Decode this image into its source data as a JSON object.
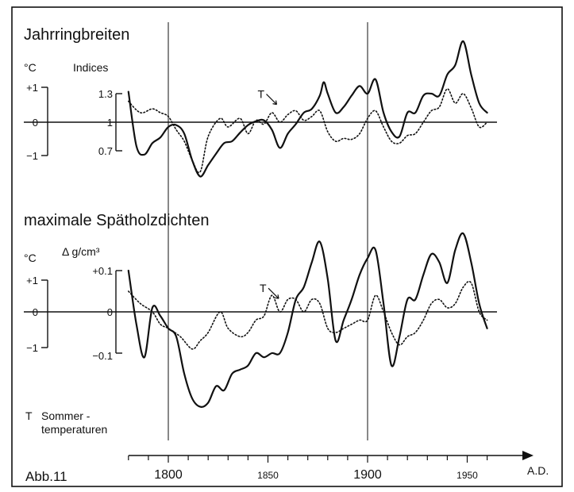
{
  "figure_label": "Abb.11",
  "legend_note": {
    "marker": "T",
    "line1": "Sommer -",
    "line2": "temperaturen"
  },
  "time_axis": {
    "label": "A.D.",
    "ticks": [
      1800,
      1850,
      1900,
      1950
    ],
    "range": [
      1780,
      1970
    ]
  },
  "chart_data": [
    {
      "type": "line",
      "title": "Jahrringbreiten",
      "temp_axis": {
        "unit": "°C",
        "ticks": [
          "+1",
          "0",
          "−1"
        ],
        "range": [
          -1,
          1
        ]
      },
      "index_axis": {
        "unit": "Indices",
        "ticks": [
          "1.3",
          "1",
          "0.7"
        ],
        "range": [
          0.7,
          1.3
        ]
      },
      "series": [
        {
          "style": "solid",
          "x": [
            1780,
            1784,
            1788,
            1792,
            1796,
            1800,
            1804,
            1808,
            1812,
            1816,
            1820,
            1824,
            1828,
            1832,
            1836,
            1840,
            1844,
            1848,
            1852,
            1856,
            1860,
            1864,
            1868,
            1872,
            1876,
            1878,
            1880,
            1884,
            1888,
            1892,
            1896,
            1900,
            1904,
            1908,
            1912,
            1916,
            1920,
            1924,
            1928,
            1932,
            1936,
            1940,
            1944,
            1948,
            1952,
            1956,
            1960
          ],
          "y": [
            1.32,
            0.75,
            0.66,
            0.78,
            0.84,
            0.95,
            0.97,
            0.88,
            0.6,
            0.43,
            0.55,
            0.67,
            0.78,
            0.8,
            0.89,
            0.97,
            1.01,
            1.02,
            0.92,
            0.73,
            0.88,
            0.98,
            1.1,
            1.14,
            1.28,
            1.42,
            1.3,
            1.1,
            1.16,
            1.28,
            1.38,
            1.3,
            1.45,
            1.1,
            0.9,
            0.85,
            1.1,
            1.1,
            1.28,
            1.3,
            1.28,
            1.5,
            1.6,
            1.85,
            1.5,
            1.2,
            1.1
          ]
        },
        {
          "style": "dotted",
          "x": [
            1780,
            1786,
            1792,
            1796,
            1800,
            1804,
            1808,
            1812,
            1816,
            1820,
            1826,
            1830,
            1836,
            1840,
            1844,
            1848,
            1852,
            1856,
            1860,
            1864,
            1868,
            1872,
            1876,
            1880,
            1884,
            1888,
            1892,
            1896,
            1900,
            1904,
            1908,
            1912,
            1916,
            1920,
            1924,
            1928,
            1932,
            1936,
            1940,
            1944,
            1948,
            1952,
            1956,
            1960
          ],
          "y": [
            1.22,
            1.1,
            1.14,
            1.1,
            1.06,
            0.92,
            0.8,
            0.6,
            0.48,
            0.85,
            1.04,
            0.95,
            1.04,
            0.88,
            1.02,
            0.98,
            1.1,
            1.0,
            1.08,
            1.12,
            1.02,
            1.06,
            1.12,
            0.9,
            0.8,
            0.83,
            0.82,
            0.88,
            1.04,
            1.12,
            0.95,
            0.8,
            0.78,
            0.86,
            0.88,
            1.0,
            1.12,
            1.16,
            1.35,
            1.2,
            1.3,
            1.15,
            0.95,
            1.0
          ]
        }
      ],
      "annotation": {
        "text": "T",
        "x": 1852,
        "y": 1.22
      }
    },
    {
      "type": "line",
      "title": "maximale Spätholzdichten",
      "temp_axis": {
        "unit": "°C",
        "ticks": [
          "+1",
          "0",
          "−1"
        ],
        "range": [
          -1,
          1
        ]
      },
      "density_axis": {
        "unit": "Δ g/cm³",
        "ticks": [
          "+0.1",
          "0",
          "−0.1"
        ],
        "range": [
          -0.1,
          0.1
        ]
      },
      "series": [
        {
          "style": "solid",
          "x": [
            1780,
            1784,
            1788,
            1792,
            1796,
            1800,
            1804,
            1808,
            1812,
            1816,
            1820,
            1824,
            1828,
            1832,
            1836,
            1840,
            1844,
            1848,
            1852,
            1856,
            1860,
            1864,
            1868,
            1872,
            1876,
            1880,
            1884,
            1888,
            1892,
            1896,
            1900,
            1904,
            1908,
            1912,
            1916,
            1920,
            1924,
            1928,
            1932,
            1936,
            1940,
            1944,
            1948,
            1952,
            1956,
            1960
          ],
          "y": [
            0.1,
            -0.03,
            -0.11,
            0.01,
            -0.01,
            -0.04,
            -0.06,
            -0.15,
            -0.21,
            -0.23,
            -0.22,
            -0.18,
            -0.19,
            -0.15,
            -0.14,
            -0.13,
            -0.1,
            -0.11,
            -0.1,
            -0.1,
            -0.05,
            0.03,
            0.06,
            0.12,
            0.17,
            0.08,
            -0.07,
            -0.02,
            0.03,
            0.09,
            0.13,
            0.15,
            0.02,
            -0.13,
            -0.06,
            0.03,
            0.03,
            0.09,
            0.14,
            0.12,
            0.07,
            0.15,
            0.19,
            0.12,
            0.02,
            -0.04
          ]
        },
        {
          "style": "dotted",
          "x": [
            1780,
            1786,
            1792,
            1796,
            1800,
            1806,
            1812,
            1816,
            1820,
            1826,
            1830,
            1836,
            1840,
            1844,
            1848,
            1852,
            1856,
            1860,
            1864,
            1868,
            1872,
            1876,
            1880,
            1884,
            1888,
            1892,
            1896,
            1900,
            1904,
            1908,
            1912,
            1916,
            1920,
            1924,
            1928,
            1932,
            1936,
            1940,
            1944,
            1948,
            1952,
            1956,
            1960
          ],
          "y": [
            0.05,
            0.02,
            0.0,
            -0.03,
            -0.04,
            -0.06,
            -0.09,
            -0.07,
            -0.05,
            0.0,
            -0.04,
            -0.06,
            -0.05,
            -0.02,
            -0.01,
            0.04,
            0.0,
            0.03,
            0.03,
            0.0,
            0.03,
            0.02,
            -0.04,
            -0.05,
            -0.04,
            -0.03,
            -0.02,
            -0.02,
            0.04,
            0.0,
            -0.05,
            -0.08,
            -0.06,
            -0.05,
            -0.02,
            0.02,
            0.03,
            0.01,
            0.02,
            0.06,
            0.07,
            0.0,
            -0.02
          ]
        }
      ],
      "annotation": {
        "text": "T",
        "x": 1853,
        "y": 0.04
      }
    }
  ]
}
